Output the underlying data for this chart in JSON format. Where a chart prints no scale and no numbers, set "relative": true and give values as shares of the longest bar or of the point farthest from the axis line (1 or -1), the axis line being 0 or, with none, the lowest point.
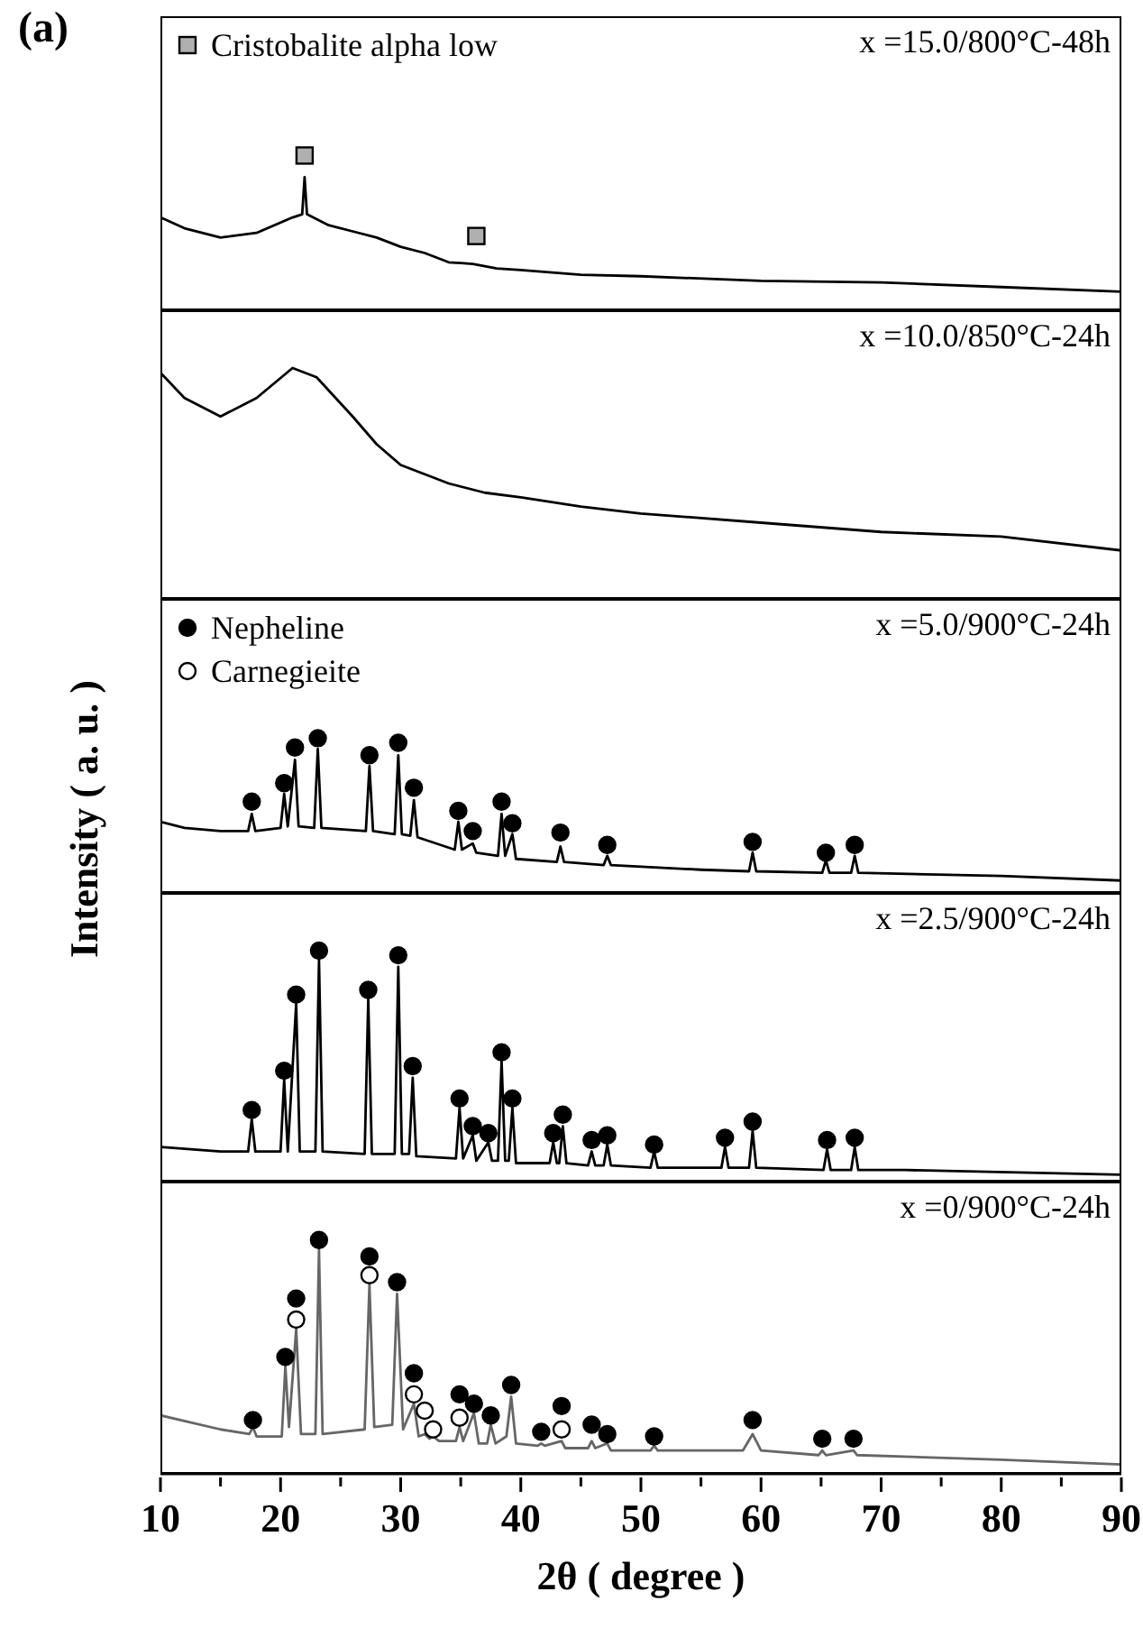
{
  "chart_data": [
    {
      "type": "line",
      "title": "(a)",
      "relative": true,
      "xlim": [
        10,
        90
      ],
      "tick_labels": false,
      "legend": "top left",
      "annotations": [
        "x =15.0/800°C-48h"
      ],
      "series": [
        {
          "color": "#000000",
          "x": [
            10,
            12,
            15,
            18,
            21,
            21.8,
            22,
            22.2,
            24,
            26,
            28,
            30,
            32,
            34,
            36,
            38,
            40,
            45,
            50,
            60,
            70,
            80,
            90
          ],
          "values": [
            0.6,
            0.53,
            0.47,
            0.5,
            0.6,
            0.62,
            0.86,
            0.62,
            0.55,
            0.51,
            0.47,
            0.41,
            0.37,
            0.31,
            0.3,
            0.27,
            0.26,
            0.23,
            0.22,
            0.19,
            0.18,
            0.15,
            0.12
          ]
        },
        {
          "type": "scatter",
          "name": "Cristobalite alpha low",
          "color": "#b0b0b0",
          "marker": "square",
          "x": [
            22,
            36.3
          ],
          "values": [
            1,
            0.48
          ]
        }
      ]
    },
    {
      "type": "line",
      "relative": true,
      "xlim": [
        10,
        90
      ],
      "tick_labels": false,
      "annotations": [
        "x =10.0/850°C-24h"
      ],
      "series": [
        {
          "color": "#000000",
          "x": [
            10,
            12,
            15,
            18,
            21,
            23,
            26,
            28,
            30,
            32,
            34,
            37,
            40,
            45,
            50,
            60,
            70,
            80,
            90
          ],
          "values": [
            0.98,
            0.87,
            0.79,
            0.87,
            1,
            0.96,
            0.79,
            0.67,
            0.58,
            0.54,
            0.5,
            0.46,
            0.44,
            0.4,
            0.37,
            0.33,
            0.29,
            0.27,
            0.21
          ]
        }
      ]
    },
    {
      "type": "line",
      "relative": true,
      "xlim": [
        10,
        90
      ],
      "tick_labels": false,
      "legend": "top left",
      "ylabel": "Intensity ( a. u. )",
      "annotations": [
        "x =5.0/900°C-24h"
      ],
      "series": [
        {
          "color": "#000000",
          "x": [
            10,
            12,
            15,
            17.3,
            17.6,
            17.9,
            20.0,
            20.3,
            20.6,
            21.2,
            21.5,
            22.8,
            23.1,
            23.4,
            27.1,
            27.4,
            27.7,
            29.5,
            29.8,
            30.1,
            30.8,
            31.1,
            31.4,
            34.5,
            34.8,
            35.1,
            36.0,
            36.3,
            38.1,
            38.4,
            38.7,
            39.3,
            39.6,
            43.0,
            43.3,
            43.6,
            46.9,
            47.2,
            47.5,
            55,
            59.0,
            59.3,
            59.6,
            65.1,
            65.4,
            65.7,
            67.5,
            67.8,
            68.1,
            80,
            90
          ],
          "values": [
            0.46,
            0.42,
            0.4,
            0.4,
            0.51,
            0.4,
            0.42,
            0.64,
            0.43,
            0.86,
            0.43,
            0.42,
            0.93,
            0.42,
            0.4,
            0.82,
            0.4,
            0.38,
            0.89,
            0.38,
            0.37,
            0.6,
            0.36,
            0.28,
            0.46,
            0.28,
            0.32,
            0.26,
            0.24,
            0.51,
            0.24,
            0.38,
            0.22,
            0.2,
            0.3,
            0.2,
            0.18,
            0.24,
            0.18,
            0.15,
            0.14,
            0.26,
            0.14,
            0.13,
            0.21,
            0.13,
            0.13,
            0.24,
            0.13,
            0.11,
            0.08
          ]
        },
        {
          "type": "scatter",
          "name": "Nepheline",
          "color": "#000000",
          "marker": "circle",
          "x": [
            17.6,
            20.3,
            21.2,
            23.1,
            27.4,
            29.8,
            31.1,
            34.8,
            36.0,
            38.4,
            39.3,
            43.3,
            47.2,
            59.3,
            65.4,
            67.8
          ],
          "values": [
            0.59,
            0.71,
            0.94,
            1,
            0.89,
            0.97,
            0.68,
            0.53,
            0.4,
            0.59,
            0.45,
            0.39,
            0.31,
            0.33,
            0.26,
            0.31
          ]
        },
        {
          "type": "scatter",
          "name": "Carnegieite",
          "color": "#ffffff",
          "marker": "circle"
        }
      ]
    },
    {
      "type": "line",
      "relative": true,
      "xlim": [
        10,
        90
      ],
      "tick_labels": false,
      "annotations": [
        "x =2.5/900°C-24h"
      ],
      "series": [
        {
          "color": "#000000",
          "x": [
            10,
            15,
            17.3,
            17.6,
            17.9,
            20.0,
            20.3,
            20.6,
            21.3,
            21.6,
            22.9,
            23.2,
            23.5,
            27.0,
            27.3,
            27.6,
            29.5,
            29.8,
            30.1,
            30.7,
            31.0,
            31.3,
            34.6,
            34.9,
            35.2,
            36.0,
            36.3,
            37.3,
            37.6,
            38.1,
            38.4,
            38.7,
            39.0,
            39.3,
            39.6,
            42.4,
            42.7,
            43.0,
            43.2,
            43.5,
            43.8,
            45.6,
            45.9,
            46.2,
            46.9,
            47.2,
            47.5,
            50.8,
            51.1,
            51.4,
            56.7,
            57.0,
            57.3,
            59.0,
            59.3,
            59.6,
            65.2,
            65.5,
            65.8,
            67.5,
            67.8,
            68.1,
            72,
            90
          ],
          "values": [
            0.15,
            0.13,
            0.13,
            0.27,
            0.13,
            0.13,
            0.44,
            0.13,
            0.77,
            0.13,
            0.13,
            0.96,
            0.13,
            0.12,
            0.79,
            0.12,
            0.12,
            0.93,
            0.12,
            0.12,
            0.45,
            0.11,
            0.1,
            0.32,
            0.1,
            0.2,
            0.09,
            0.17,
            0.09,
            0.09,
            0.52,
            0.09,
            0.09,
            0.32,
            0.08,
            0.08,
            0.17,
            0.08,
            0.08,
            0.24,
            0.08,
            0.07,
            0.13,
            0.07,
            0.07,
            0.16,
            0.07,
            0.06,
            0.13,
            0.06,
            0.06,
            0.15,
            0.06,
            0.06,
            0.22,
            0.06,
            0.05,
            0.14,
            0.05,
            0.05,
            0.15,
            0.05,
            0.05,
            0.03
          ]
        },
        {
          "type": "scatter",
          "color": "#000000",
          "marker": "circle",
          "x": [
            17.6,
            20.3,
            21.3,
            23.2,
            27.3,
            29.8,
            31.0,
            34.9,
            36.0,
            37.3,
            38.4,
            39.3,
            42.7,
            43.5,
            45.9,
            47.2,
            51.1,
            57.0,
            59.3,
            65.5,
            67.8
          ],
          "values": [
            0.31,
            0.48,
            0.81,
            1,
            0.83,
            0.98,
            0.5,
            0.36,
            0.24,
            0.21,
            0.56,
            0.36,
            0.21,
            0.29,
            0.18,
            0.2,
            0.16,
            0.19,
            0.26,
            0.18,
            0.19
          ]
        }
      ]
    },
    {
      "type": "line",
      "relative": true,
      "xlim": [
        10,
        90
      ],
      "xticks": [
        10,
        {
          "value": 15,
          "label": null
        },
        20,
        {
          "value": 25,
          "label": null
        },
        30,
        {
          "value": 35,
          "label": null
        },
        40,
        {
          "value": 45,
          "label": null
        },
        50,
        {
          "value": 55,
          "label": null
        },
        60,
        {
          "value": 65,
          "label": null
        },
        70,
        {
          "value": 75,
          "label": null
        },
        80,
        {
          "value": 85,
          "label": null
        },
        90
      ],
      "tick_labels": "x",
      "xlabel": "2θ ( degree )",
      "annotations": [
        "x =0/900°C-24h"
      ],
      "series": [
        {
          "color": "#666666",
          "x": [
            10,
            15,
            17.4,
            17.7,
            18.0,
            20.1,
            20.4,
            20.7,
            21.3,
            21.7,
            22.9,
            23.2,
            23.5,
            27.0,
            27.4,
            27.8,
            29.3,
            29.7,
            30.2,
            31.1,
            31.5,
            32.0,
            32.4,
            32.7,
            33.2,
            34.6,
            34.9,
            35.2,
            36.1,
            36.5,
            37.2,
            37.5,
            37.9,
            38.8,
            39.2,
            39.6,
            41.4,
            41.7,
            42.0,
            43.4,
            43.7,
            45.6,
            45.9,
            46.2,
            47.2,
            47.5,
            50.8,
            51.1,
            51.4,
            58.5,
            59.3,
            60.0,
            64.8,
            65.1,
            65.4,
            67.7,
            68.0,
            80,
            90
          ],
          "values": [
            0.25,
            0.19,
            0.17,
            0.2,
            0.16,
            0.16,
            0.46,
            0.2,
            0.62,
            0.17,
            0.17,
            0.96,
            0.17,
            0.19,
            0.81,
            0.2,
            0.21,
            0.77,
            0.19,
            0.3,
            0.16,
            0.17,
            0.15,
            0.16,
            0.14,
            0.14,
            0.2,
            0.14,
            0.26,
            0.13,
            0.13,
            0.21,
            0.13,
            0.16,
            0.33,
            0.13,
            0.12,
            0.13,
            0.12,
            0.14,
            0.11,
            0.11,
            0.14,
            0.11,
            0.13,
            0.1,
            0.1,
            0.12,
            0.1,
            0.1,
            0.17,
            0.1,
            0.08,
            0.1,
            0.08,
            0.1,
            0.08,
            0.06,
            0.04
          ]
        },
        {
          "type": "scatter",
          "color": "#000000",
          "marker": "circle",
          "x": [
            17.7,
            20.4,
            21.3,
            23.2,
            27.4,
            29.7,
            31.1,
            34.9,
            36.1,
            37.5,
            39.2,
            41.7,
            43.4,
            45.9,
            47.2,
            51.1,
            59.3,
            65.1,
            67.7
          ],
          "values": [
            0.23,
            0.5,
            0.75,
            1,
            0.93,
            0.82,
            0.43,
            0.34,
            0.3,
            0.25,
            0.38,
            0.18,
            0.29,
            0.21,
            0.17,
            0.16,
            0.23,
            0.15,
            0.15
          ]
        },
        {
          "type": "scatter",
          "color": "#ffffff",
          "marker": "circle",
          "x": [
            21.3,
            27.4,
            31.1,
            32.0,
            32.7,
            34.9,
            43.4
          ],
          "values": [
            0.66,
            0.85,
            0.34,
            0.27,
            0.19,
            0.24,
            0.19
          ]
        }
      ]
    }
  ]
}
